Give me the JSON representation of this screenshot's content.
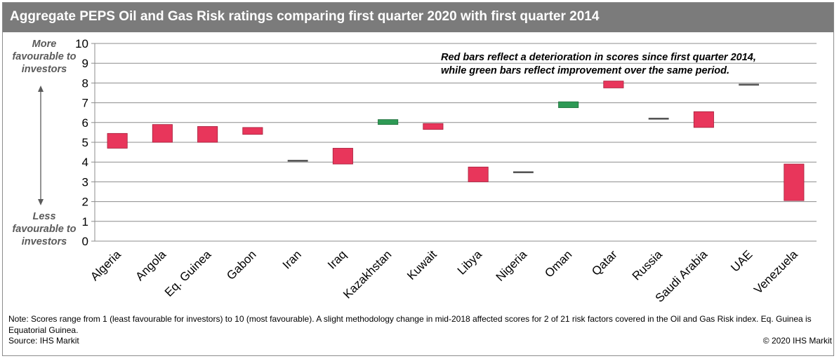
{
  "header": {
    "title": "Aggregate PEPS Oil and Gas Risk ratings comparing first quarter 2020 with first quarter 2014"
  },
  "side_labels": {
    "top": "More favourable to investors",
    "bottom": "Less favourable to investors"
  },
  "annotation": {
    "line1": "Red bars reflect a deterioration in scores since first quarter 2014,",
    "line2": "while green bars reflect improvement over the same period."
  },
  "footer": {
    "note": "Note: Scores range from 1 (least favourable for investors) to 10 (most favourable). A slight methodology change in mid-2018 affected scores for 2 of 21 risk factors covered in the Oil and Gas Risk index. Eq. Guinea is Equatorial Guinea.",
    "source": "Source: IHS Markit",
    "copyright": "© 2020 IHS Markit"
  },
  "colors": {
    "deterioration": "#e8365b",
    "improvement": "#2e9a55",
    "title_bar": "#7b7b7b",
    "gridline": "#8c8c8c"
  },
  "chart_data": {
    "type": "bar",
    "subtype": "floating",
    "ylim": [
      0,
      10
    ],
    "yticks": [
      "0",
      "1",
      "2",
      "3",
      "4",
      "5",
      "6",
      "7",
      "8",
      "9",
      "10"
    ],
    "grid": true,
    "categories": [
      "Algeria",
      "Angola",
      "Eq. Guinea",
      "Gabon",
      "Iran",
      "Iraq",
      "Kazakhstan",
      "Kuwait",
      "Libya",
      "Nigeria",
      "Oman",
      "Qatar",
      "Russia",
      "Saudi Arabia",
      "UAE",
      "Venezuela"
    ],
    "series": [
      {
        "values": [
          {
            "low": 4.7,
            "high": 5.45,
            "change": "deterioration"
          },
          {
            "low": 5.0,
            "high": 5.9,
            "change": "deterioration"
          },
          {
            "low": 5.0,
            "high": 5.8,
            "change": "deterioration"
          },
          {
            "low": 5.4,
            "high": 5.75,
            "change": "deterioration"
          },
          {
            "low": 4.05,
            "high": 4.1,
            "change": "deterioration"
          },
          {
            "low": 3.9,
            "high": 4.7,
            "change": "deterioration"
          },
          {
            "low": 5.9,
            "high": 6.15,
            "change": "improvement"
          },
          {
            "low": 5.65,
            "high": 5.95,
            "change": "deterioration"
          },
          {
            "low": 3.0,
            "high": 3.75,
            "change": "deterioration"
          },
          {
            "low": 3.45,
            "high": 3.52,
            "change": "improvement"
          },
          {
            "low": 6.75,
            "high": 7.05,
            "change": "improvement"
          },
          {
            "low": 7.75,
            "high": 8.1,
            "change": "deterioration"
          },
          {
            "low": 6.18,
            "high": 6.23,
            "change": "deterioration"
          },
          {
            "low": 5.75,
            "high": 6.55,
            "change": "deterioration"
          },
          {
            "low": 7.9,
            "high": 7.95,
            "change": "deterioration"
          },
          {
            "low": 2.05,
            "high": 3.9,
            "change": "deterioration"
          }
        ]
      }
    ]
  }
}
